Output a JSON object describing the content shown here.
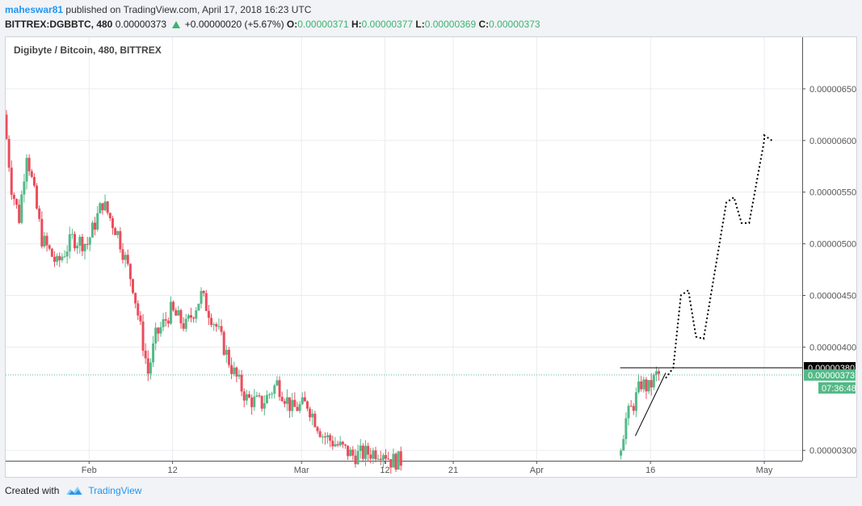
{
  "header": {
    "author": "maheswar81",
    "published_text": "published on TradingView.com, April 17, 2018 16:23 UTC",
    "symbol": "BITTREX:DGBBTC, 480",
    "last": "0.00000373",
    "change": "+0.00000020 (+5.67%)",
    "o_label": "O:",
    "o_value": "0.00000371",
    "h_label": "H:",
    "h_value": "0.00000377",
    "l_label": "L:",
    "l_value": "0.00000369",
    "c_label": "C:",
    "c_value": "0.00000373"
  },
  "chart_title": "Digibyte / Bitcoin, 480, BITTREX",
  "footer": {
    "created_with": "Created with",
    "brand": "TradingView"
  },
  "colors": {
    "up": "#53b987",
    "down": "#eb4d5c",
    "grid": "#e9ecf0",
    "axis_text": "#555555",
    "projection": "#000000",
    "current_line": "#5bb6a0",
    "badge_dark": "#000000",
    "badge_green": "#53b987"
  },
  "chart_data": {
    "type": "candlestick",
    "symbol": "DGBBTC",
    "exchange": "BITTREX",
    "interval": "480",
    "ylim": [
      2.9e-06,
      7e-06
    ],
    "y_ticks": [
      {
        "value": 6.5e-06,
        "label": "0.00000650"
      },
      {
        "value": 6e-06,
        "label": "0.00000600"
      },
      {
        "value": 5.5e-06,
        "label": "0.00000550"
      },
      {
        "value": 5e-06,
        "label": "0.00000500"
      },
      {
        "value": 4.5e-06,
        "label": "0.00000450"
      },
      {
        "value": 4e-06,
        "label": "0.00000400"
      },
      {
        "value": 3e-06,
        "label": "0.00000300"
      }
    ],
    "x_ticks": [
      {
        "date": "2018-02-01",
        "label": "Feb"
      },
      {
        "date": "2018-02-12",
        "label": "12"
      },
      {
        "date": "2018-03-01",
        "label": "Mar"
      },
      {
        "date": "2018-03-12",
        "label": "12"
      },
      {
        "date": "2018-03-21",
        "label": "21"
      },
      {
        "date": "2018-04-01",
        "label": "Apr"
      },
      {
        "date": "2018-04-16",
        "label": "16"
      },
      {
        "date": "2018-05-01",
        "label": "May"
      }
    ],
    "x_start": "2018-01-21",
    "x_end": "2018-05-06",
    "price_path": [
      {
        "date": "2018-01-21",
        "price": 6.25e-06
      },
      {
        "date": "2018-01-22",
        "price": 5.55e-06
      },
      {
        "date": "2018-01-23",
        "price": 5.25e-06
      },
      {
        "date": "2018-01-24",
        "price": 5.9e-06
      },
      {
        "date": "2018-01-26",
        "price": 5.05e-06
      },
      {
        "date": "2018-01-28",
        "price": 4.8e-06
      },
      {
        "date": "2018-01-30",
        "price": 5.05e-06
      },
      {
        "date": "2018-02-01",
        "price": 5e-06
      },
      {
        "date": "2018-02-03",
        "price": 5.4e-06
      },
      {
        "date": "2018-02-05",
        "price": 5.1e-06
      },
      {
        "date": "2018-02-07",
        "price": 4.6e-06
      },
      {
        "date": "2018-02-09",
        "price": 3.75e-06
      },
      {
        "date": "2018-02-10",
        "price": 4.1e-06
      },
      {
        "date": "2018-02-12",
        "price": 4.35e-06
      },
      {
        "date": "2018-02-14",
        "price": 4.2e-06
      },
      {
        "date": "2018-02-16",
        "price": 4.5e-06
      },
      {
        "date": "2018-02-18",
        "price": 4.2e-06
      },
      {
        "date": "2018-02-20",
        "price": 3.8e-06
      },
      {
        "date": "2018-02-22",
        "price": 3.5e-06
      },
      {
        "date": "2018-02-24",
        "price": 3.45e-06
      },
      {
        "date": "2018-02-26",
        "price": 3.65e-06
      },
      {
        "date": "2018-02-28",
        "price": 3.4e-06
      },
      {
        "date": "2018-03-02",
        "price": 3.45e-06
      },
      {
        "date": "2018-03-04",
        "price": 3.15e-06
      },
      {
        "date": "2018-03-06",
        "price": 3.05e-06
      },
      {
        "date": "2018-03-08",
        "price": 2.95e-06
      },
      {
        "date": "2018-03-12",
        "price": 3e-06
      },
      {
        "date": "2018-03-13",
        "price": 2.9e-06
      },
      {
        "date": "2018-04-12",
        "price": 2.95e-06
      },
      {
        "date": "2018-04-13",
        "price": 3.3e-06
      },
      {
        "date": "2018-04-14",
        "price": 3.45e-06
      },
      {
        "date": "2018-04-15",
        "price": 3.65e-06
      },
      {
        "date": "2018-04-16",
        "price": 3.6e-06
      },
      {
        "date": "2018-04-17",
        "price": 3.73e-06
      }
    ],
    "resistance_level": 3.8e-06,
    "resistance_label": "0.00000380",
    "resistance_from": "2018-04-12",
    "current_price": 3.73e-06,
    "current_label": "0.00000373",
    "countdown": "07:36:48",
    "trendline": [
      {
        "date": "2018-04-14",
        "price": 3.14e-06
      },
      {
        "date": "2018-04-18",
        "price": 3.75e-06
      }
    ],
    "projection": [
      {
        "date": "2018-04-18",
        "price": 3.7e-06
      },
      {
        "date": "2018-04-19",
        "price": 3.8e-06
      },
      {
        "date": "2018-04-20",
        "price": 4.5e-06
      },
      {
        "date": "2018-04-21",
        "price": 4.55e-06
      },
      {
        "date": "2018-04-22",
        "price": 4.1e-06
      },
      {
        "date": "2018-04-23",
        "price": 4.08e-06
      },
      {
        "date": "2018-04-26",
        "price": 5.4e-06
      },
      {
        "date": "2018-04-27",
        "price": 5.45e-06
      },
      {
        "date": "2018-04-28",
        "price": 5.2e-06
      },
      {
        "date": "2018-04-29",
        "price": 5.2e-06
      },
      {
        "date": "2018-05-01",
        "price": 6e-06
      },
      {
        "date": "2018-05-01",
        "price": 6.05e-06
      },
      {
        "date": "2018-05-02",
        "price": 6e-06
      }
    ]
  }
}
